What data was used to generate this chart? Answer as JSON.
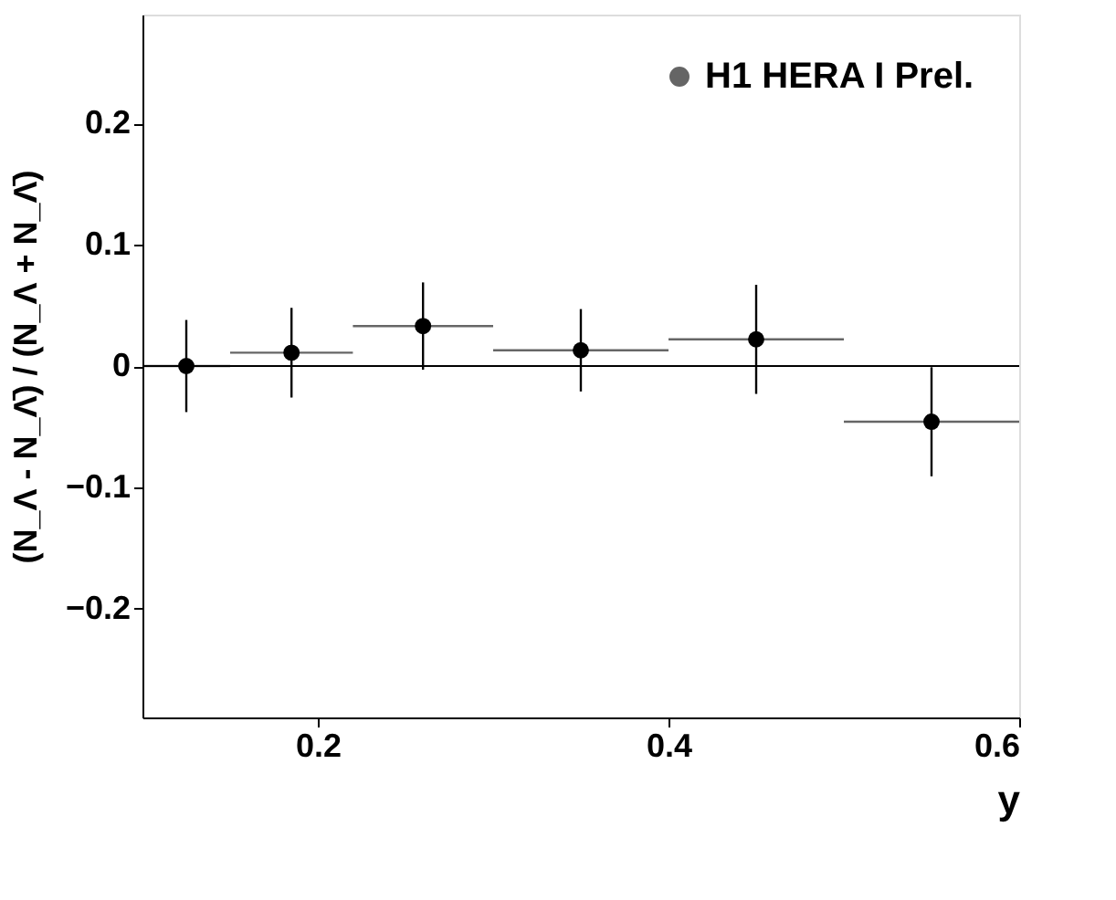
{
  "chart_data": {
    "type": "scatter",
    "xlabel": "y",
    "ylabel": "(N_Λ - N_Λ̄) / (N_Λ + N_Λ̄)",
    "x": [
      0.125,
      0.185,
      0.26,
      0.35,
      0.45,
      0.55
    ],
    "series": [
      {
        "name": "H1 HERA I Prel.",
        "color": "#000000",
        "values": [
          0.0,
          0.011,
          0.033,
          0.013,
          0.022,
          -0.046
        ],
        "errors": [
          0.038,
          0.037,
          0.036,
          0.034,
          0.045,
          0.045
        ],
        "xerrors": [
          [
            0.1,
            0.15
          ],
          [
            0.15,
            0.22
          ],
          [
            0.22,
            0.3
          ],
          [
            0.3,
            0.4
          ],
          [
            0.4,
            0.5
          ],
          [
            0.5,
            0.6
          ]
        ]
      }
    ],
    "xlim": [
      0.1,
      0.6
    ],
    "ylim": [
      -0.29,
      0.29
    ],
    "xticks": [
      0.2,
      0.4,
      0.6
    ],
    "yticks": [
      -0.2,
      -0.1,
      0,
      0.1,
      0.2
    ],
    "ref_lines": [
      {
        "axis": "y",
        "value": 0,
        "color": "#000000"
      }
    ],
    "marker": "circle",
    "legend": "top right",
    "grid": false
  }
}
